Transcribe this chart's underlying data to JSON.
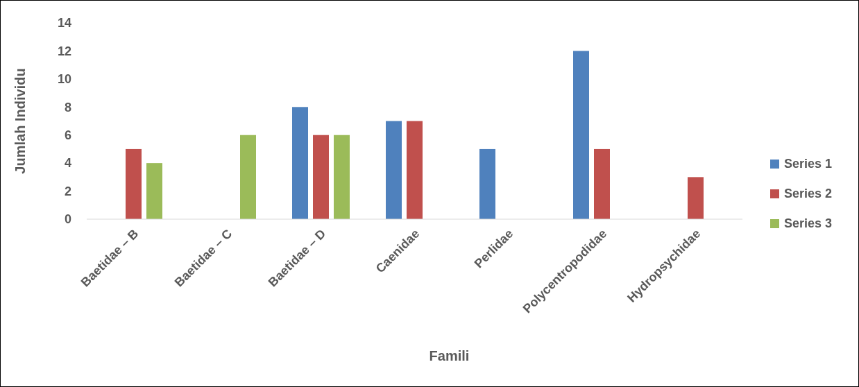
{
  "chart_data": {
    "type": "bar",
    "xlabel": "Famili",
    "ylabel": "Jumlah Individu",
    "categories": [
      "Baetidae – B",
      "Baetidae – C",
      "Baetidae – D",
      "Caenidae",
      "Perlidae",
      "Polycentropodidae",
      "Hydropsychidae"
    ],
    "series": [
      {
        "name": "Series 1",
        "color": "#4f81bd",
        "values": [
          null,
          null,
          8,
          7,
          5,
          12,
          null
        ]
      },
      {
        "name": "Series 2",
        "color": "#c0504d",
        "values": [
          5,
          null,
          6,
          7,
          null,
          5,
          3
        ]
      },
      {
        "name": "Series 3",
        "color": "#9bbb59",
        "values": [
          4,
          6,
          6,
          null,
          null,
          null,
          null
        ]
      }
    ],
    "ylim": [
      0,
      14
    ],
    "yticks": [
      0,
      2,
      4,
      6,
      8,
      10,
      12,
      14
    ],
    "grid": false,
    "legend": "right"
  }
}
